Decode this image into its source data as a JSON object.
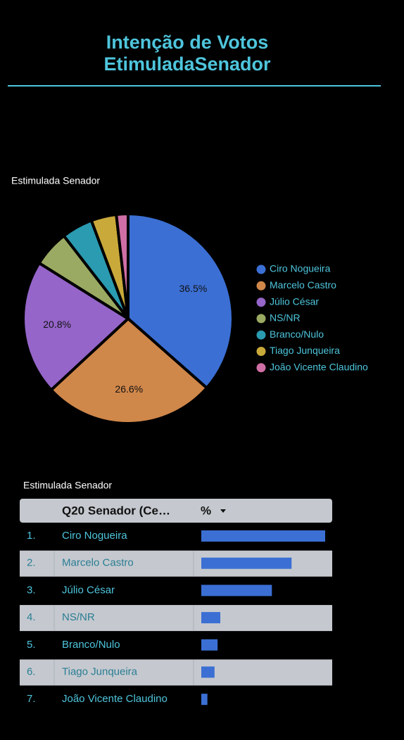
{
  "page_title": [
    "Intenção de Votos",
    "EtimuladaSenador"
  ],
  "chart_data": {
    "type": "pie",
    "title": "Estimulada Senador",
    "categories": [
      "Ciro Nogueira",
      "Marcelo Castro",
      "Júlio César",
      "NS/NR",
      "Branco/Nulo",
      "Tiago Junqueira",
      "João Vicente Claudino"
    ],
    "values": [
      36.5,
      26.6,
      20.8,
      5.6,
      4.8,
      3.9,
      1.8
    ],
    "value_labels": [
      "36.5%",
      "26.6%",
      "20.8%",
      null,
      null,
      null,
      null
    ],
    "colors": [
      "#3b6fd4",
      "#d0874a",
      "#9565c9",
      "#9aaa62",
      "#2a9bb0",
      "#c9a93a",
      "#cf6fa5"
    ],
    "legend": "right"
  },
  "table": {
    "title": "Estimulada Senador",
    "columns": [
      "Q20 Senador (Ce…",
      "%"
    ],
    "rows": [
      "1.",
      "2.",
      "3.",
      "4.",
      "5.",
      "6.",
      "7."
    ]
  }
}
